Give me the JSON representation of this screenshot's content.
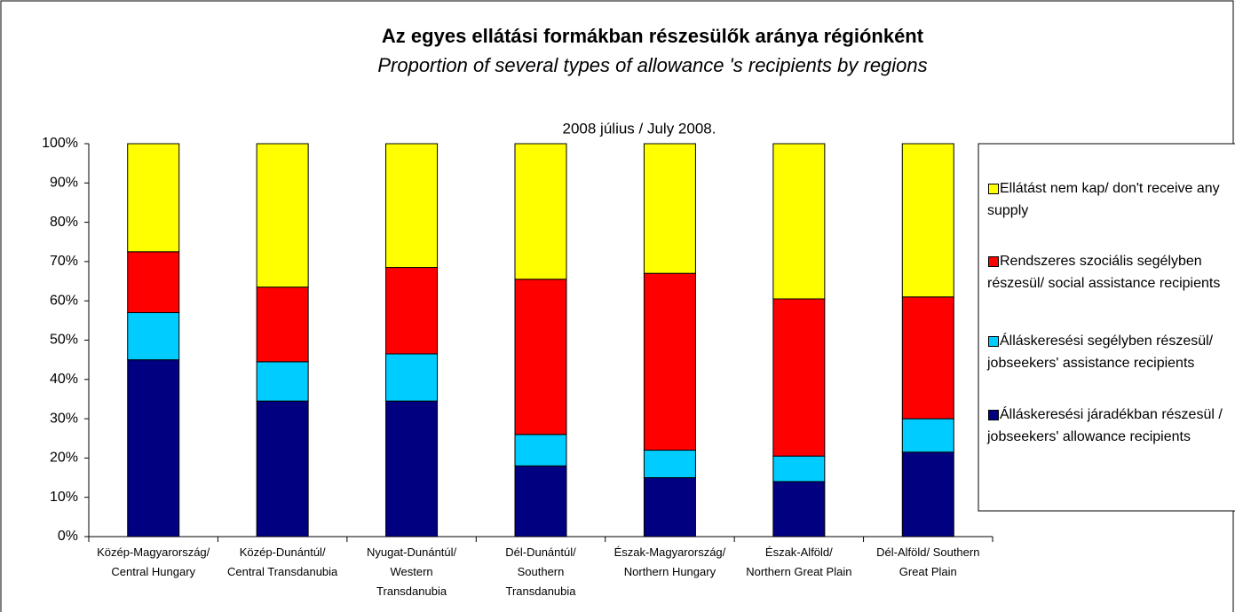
{
  "chart_data": {
    "type": "stacked_bar",
    "title": "Az egyes ellátási formákban részesülők aránya régiónként",
    "subtitle": "Proportion of several types of allowance 's recipients by regions",
    "chart_subtitle": "2008 július / July 2008.",
    "categories": [
      "Közép-Magyarország/ Central Hungary",
      "Közép-Dunántúl/ Central Transdanubia",
      "Nyugat-Dunántúl/ Western Transdanubia",
      "Dél-Dunántúl/ Southern Transdanubia",
      "Észak-Magyarország/ Northern Hungary",
      "Észak-Alföld/ Northern Great Plain",
      "Dél-Alföld/ Southern Great Plain"
    ],
    "series": [
      {
        "name": "Álláskeresési járadékban részesül / jobseekers' allowance recipients",
        "color": "#000080",
        "values": [
          45,
          34.5,
          34.5,
          18,
          15,
          14,
          21.5
        ]
      },
      {
        "name": "Álláskeresési segélyben részesül/ jobseekers' assistance recipients",
        "color": "#00ccff",
        "values": [
          12,
          10,
          12,
          8,
          7,
          6.5,
          8.5
        ]
      },
      {
        "name": "Rendszeres szociális segélyben részesül/ social assistance recipients",
        "color": "#ff0000",
        "values": [
          15.5,
          19,
          22,
          39.5,
          45,
          40,
          31
        ]
      },
      {
        "name": "Ellátást nem kap/ don't receive any supply",
        "color": "#ffff00",
        "values": [
          27.5,
          36.5,
          31.5,
          34.5,
          33,
          39.5,
          39
        ]
      }
    ],
    "ylim": [
      0,
      100
    ],
    "yticks": [
      {
        "value": 0,
        "label": "0%"
      },
      {
        "value": 10,
        "label": "10%"
      },
      {
        "value": 20,
        "label": "20%"
      },
      {
        "value": 30,
        "label": "30%"
      },
      {
        "value": 40,
        "label": "40%"
      },
      {
        "value": 50,
        "label": "50%"
      },
      {
        "value": 60,
        "label": "60%"
      },
      {
        "value": 70,
        "label": "70%"
      },
      {
        "value": 80,
        "label": "80%"
      },
      {
        "value": 90,
        "label": "90%"
      },
      {
        "value": 100,
        "label": "100%"
      }
    ],
    "legend": "right"
  }
}
